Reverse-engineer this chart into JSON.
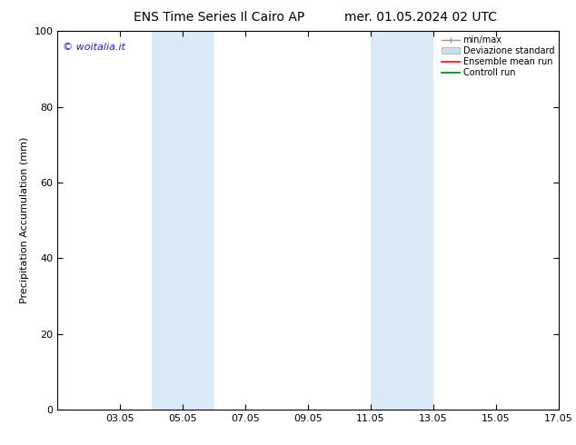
{
  "title_left": "ENS Time Series Il Cairo AP",
  "title_right": "mer. 01.05.2024 02 UTC",
  "ylabel": "Precipitation Accumulation (mm)",
  "xlim": [
    1.05,
    17.05
  ],
  "ylim": [
    0,
    100
  ],
  "yticks": [
    0,
    20,
    40,
    60,
    80,
    100
  ],
  "xticks": [
    "03.05",
    "05.05",
    "07.05",
    "09.05",
    "11.05",
    "13.05",
    "15.05",
    "17.05"
  ],
  "xtick_values": [
    3.05,
    5.05,
    7.05,
    9.05,
    11.05,
    13.05,
    15.05,
    17.05
  ],
  "shaded_bands": [
    {
      "x_start": 4.05,
      "x_end": 6.05
    },
    {
      "x_start": 11.05,
      "x_end": 13.05
    }
  ],
  "shaded_color": "#daeaf7",
  "watermark_text": "© woitalia.it",
  "watermark_color": "#1a1aff",
  "legend_labels": [
    "min/max",
    "Deviazione standard",
    "Ensemble mean run",
    "Controll run"
  ],
  "legend_colors_line": [
    "#999999",
    "#ccddee",
    "#ff0000",
    "#008000"
  ],
  "bg_color": "#ffffff",
  "plot_bg_color": "#ffffff",
  "title_fontsize": 10,
  "ylabel_fontsize": 8,
  "tick_fontsize": 8,
  "legend_fontsize": 7,
  "watermark_fontsize": 8
}
